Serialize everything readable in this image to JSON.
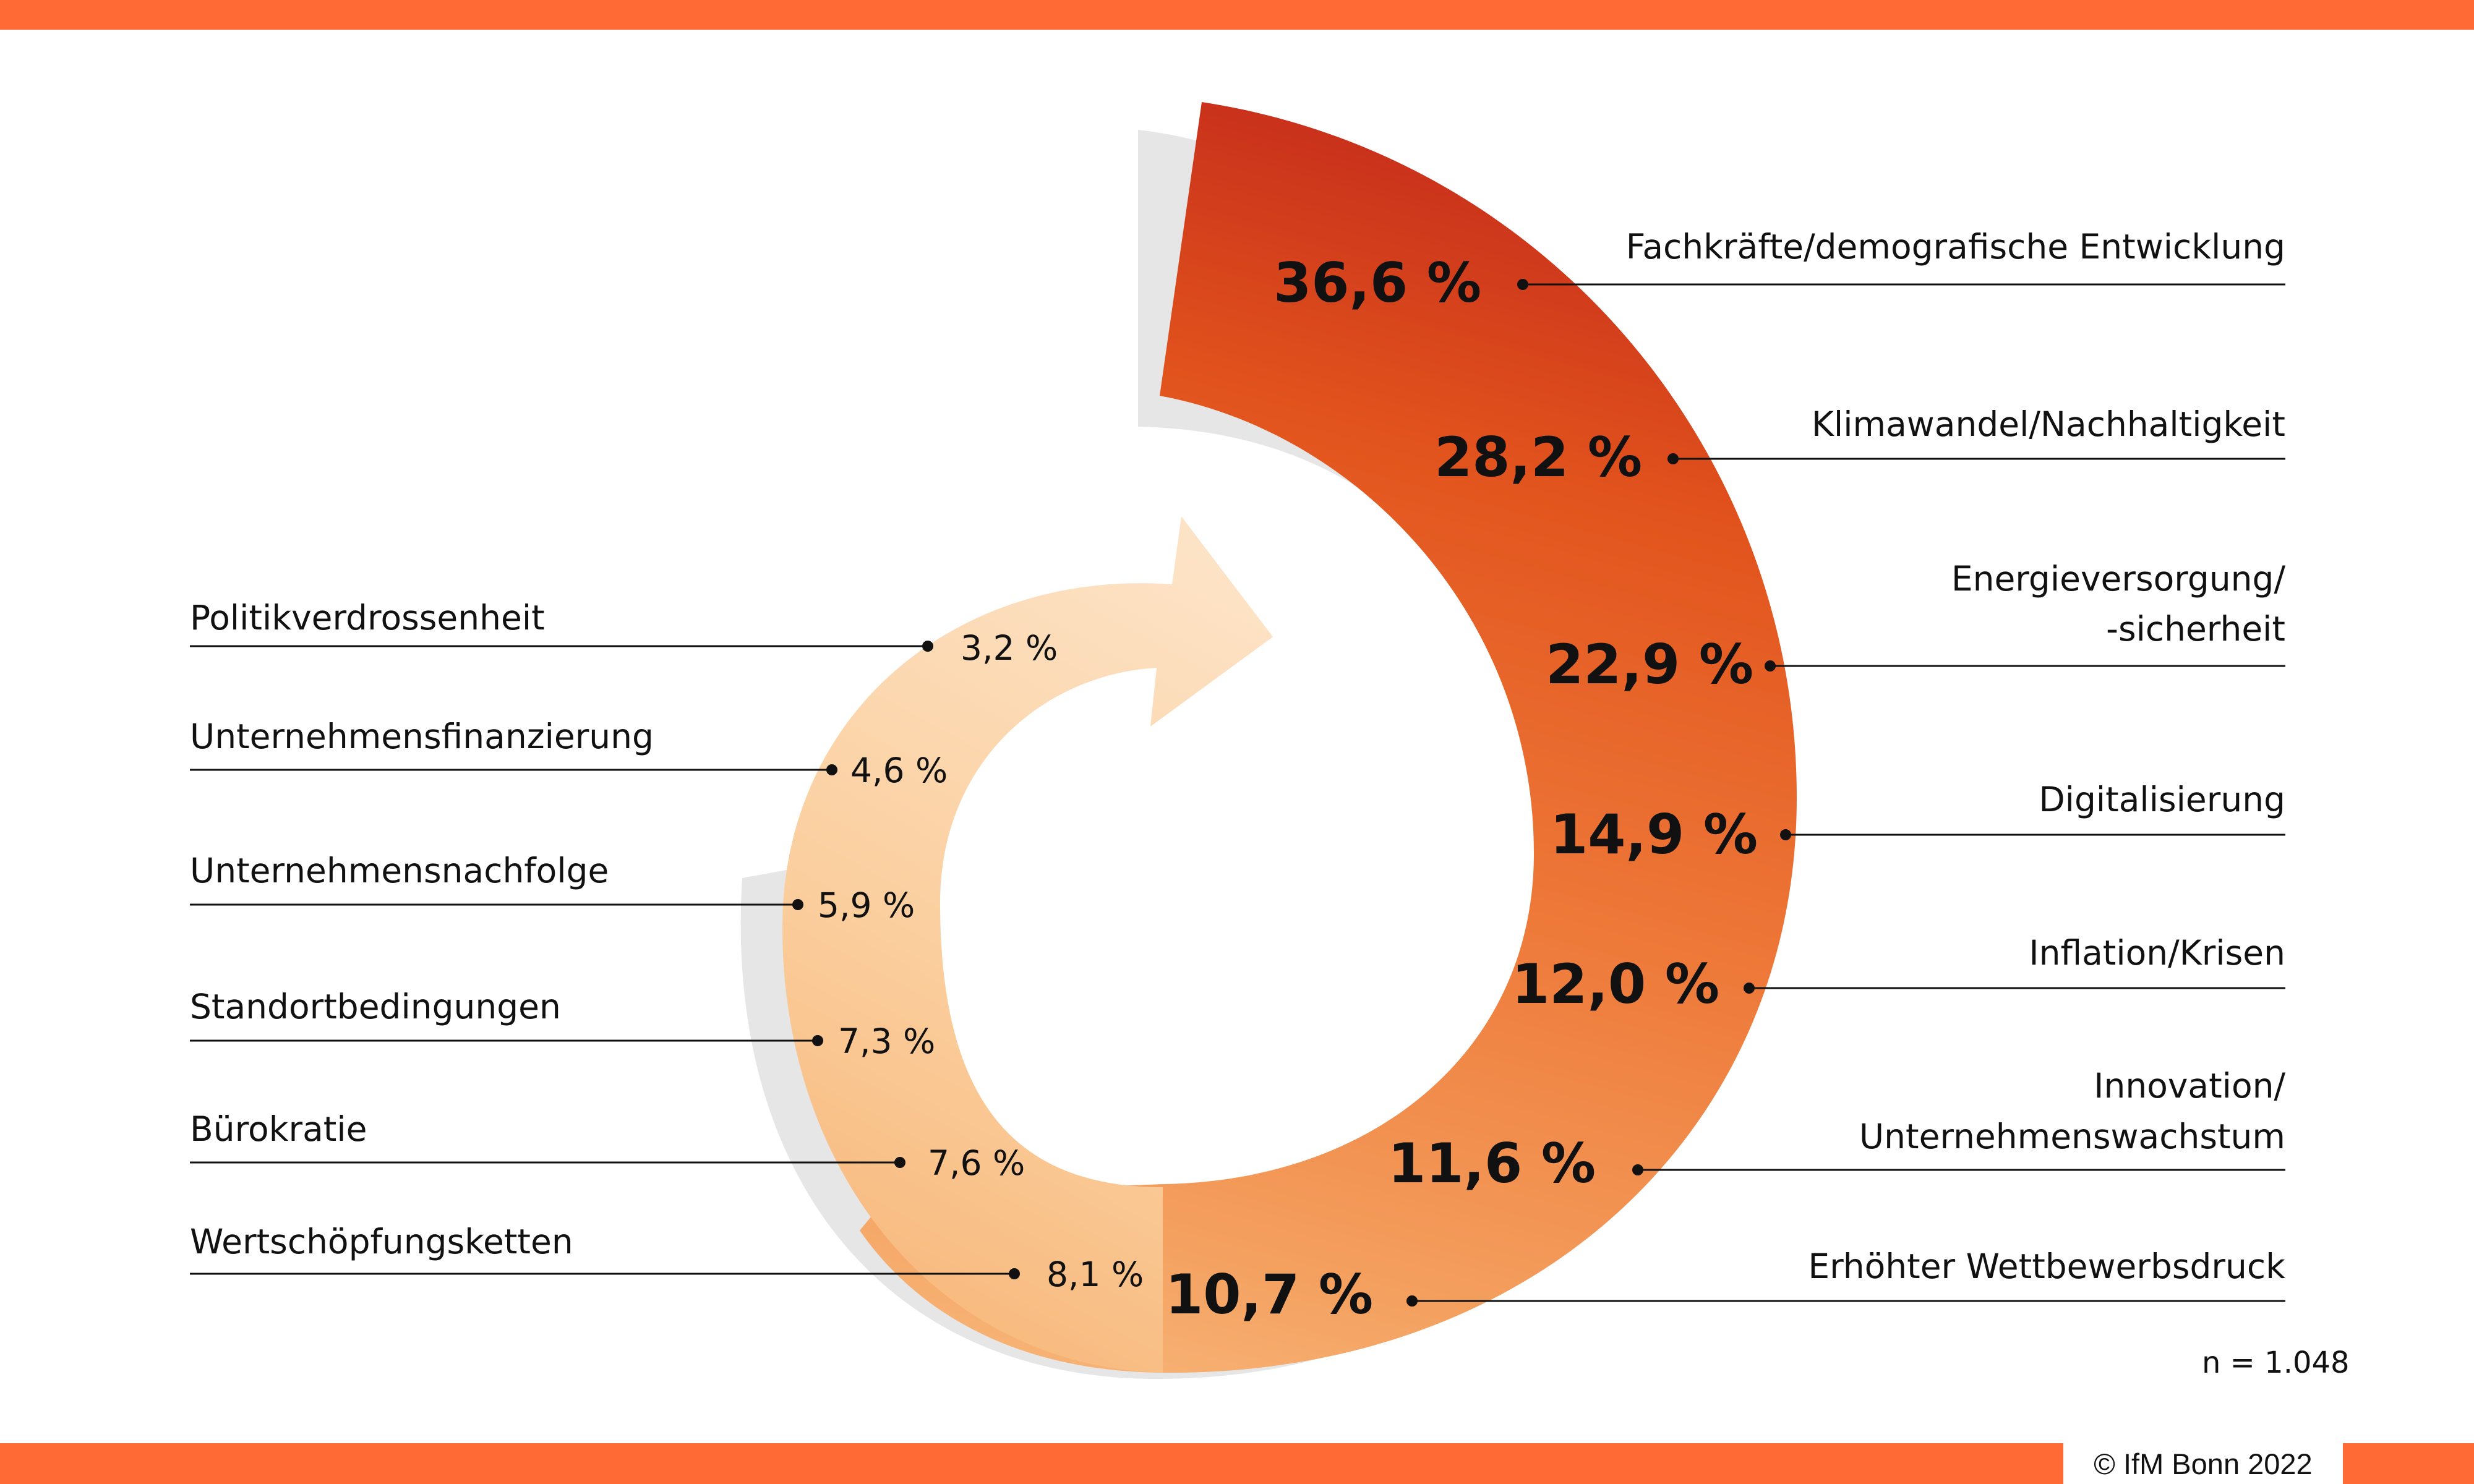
{
  "chart_data": {
    "type": "spiral-bar",
    "n": "n = 1.048",
    "right_items": [
      {
        "label_lines": [
          "Fachkräfte/demografische Entwicklung"
        ],
        "value": 36.6,
        "value_text": "36,6 %"
      },
      {
        "label_lines": [
          "Klimawandel/Nachhaltigkeit"
        ],
        "value": 28.2,
        "value_text": "28,2 %"
      },
      {
        "label_lines": [
          "Energieversorgung/",
          "-sicherheit"
        ],
        "value": 22.9,
        "value_text": "22,9 %"
      },
      {
        "label_lines": [
          "Digitalisierung"
        ],
        "value": 14.9,
        "value_text": "14,9 %"
      },
      {
        "label_lines": [
          "Inflation/Krisen"
        ],
        "value": 12.0,
        "value_text": "12,0 %"
      },
      {
        "label_lines": [
          "Innovation/",
          "Unternehmenswachstum"
        ],
        "value": 11.6,
        "value_text": "11,6 %"
      },
      {
        "label_lines": [
          "Erhöhter Wettbewerbsdruck"
        ],
        "value": 10.7,
        "value_text": "10,7 %"
      }
    ],
    "left_items": [
      {
        "label": "Politikverdrossenheit",
        "value": 3.2,
        "value_text": "3,2 %"
      },
      {
        "label": "Unternehmensfinanzierung",
        "value": 4.6,
        "value_text": "4,6 %"
      },
      {
        "label": "Unternehmensnachfolge",
        "value": 5.9,
        "value_text": "5,9 %"
      },
      {
        "label": "Standortbedingungen",
        "value": 7.3,
        "value_text": "7,3 %"
      },
      {
        "label": "Bürokratie",
        "value": 7.6,
        "value_text": "7,6 %"
      },
      {
        "label": "Wertschöpfungsketten",
        "value": 8.1,
        "value_text": "8,1 %"
      }
    ],
    "colors": {
      "dark_red": "#c9311b",
      "orange": "#f08c46",
      "light_peach": "#fde0c0",
      "shadow": "#e6e6e6",
      "accent_bar": "#ff6a35"
    }
  },
  "footer": {
    "copyright": "© IfM Bonn 2022"
  }
}
